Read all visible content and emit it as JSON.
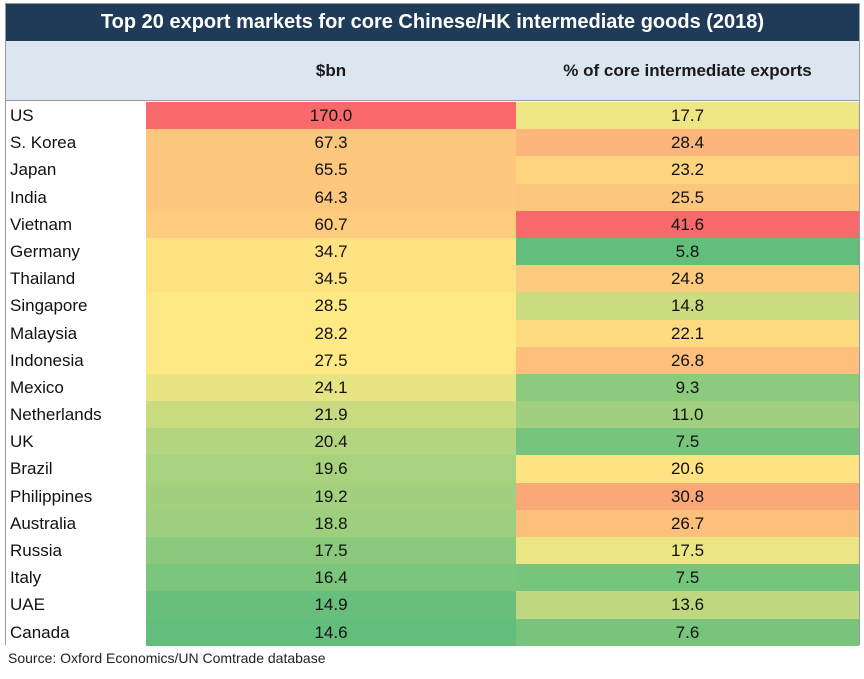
{
  "chart_data": {
    "type": "table",
    "title": "Top 20 export markets for core Chinese/HK intermediate goods (2018)",
    "columns": [
      "",
      "$bn",
      "% of core intermediate exports"
    ],
    "rows": [
      {
        "country": "US",
        "bn": "170.0",
        "pct": "17.7"
      },
      {
        "country": "S. Korea",
        "bn": "67.3",
        "pct": "28.4"
      },
      {
        "country": "Japan",
        "bn": "65.5",
        "pct": "23.2"
      },
      {
        "country": "India",
        "bn": "64.3",
        "pct": "25.5"
      },
      {
        "country": "Vietnam",
        "bn": "60.7",
        "pct": "41.6"
      },
      {
        "country": "Germany",
        "bn": "34.7",
        "pct": "5.8"
      },
      {
        "country": "Thailand",
        "bn": "34.5",
        "pct": "24.8"
      },
      {
        "country": "Singapore",
        "bn": "28.5",
        "pct": "14.8"
      },
      {
        "country": "Malaysia",
        "bn": "28.2",
        "pct": "22.1"
      },
      {
        "country": "Indonesia",
        "bn": "27.5",
        "pct": "26.8"
      },
      {
        "country": "Mexico",
        "bn": "24.1",
        "pct": "9.3"
      },
      {
        "country": "Netherlands",
        "bn": "21.9",
        "pct": "11.0"
      },
      {
        "country": "UK",
        "bn": "20.4",
        "pct": "7.5"
      },
      {
        "country": "Brazil",
        "bn": "19.6",
        "pct": "20.6"
      },
      {
        "country": "Philippines",
        "bn": "19.2",
        "pct": "30.8"
      },
      {
        "country": "Australia",
        "bn": "18.8",
        "pct": "26.7"
      },
      {
        "country": "Russia",
        "bn": "17.5",
        "pct": "17.5"
      },
      {
        "country": "Italy",
        "bn": "16.4",
        "pct": "7.5"
      },
      {
        "country": "UAE",
        "bn": "14.9",
        "pct": "13.6"
      },
      {
        "country": "Canada",
        "bn": "14.6",
        "pct": "7.6"
      }
    ],
    "colors": {
      "title_bg": "#1f3b57",
      "header_bg": "#dce6f1",
      "scale_low": "#63be7b",
      "scale_mid": "#ffeb84",
      "scale_high": "#f8696b"
    }
  },
  "source": "Source: Oxford Economics/UN Comtrade database"
}
